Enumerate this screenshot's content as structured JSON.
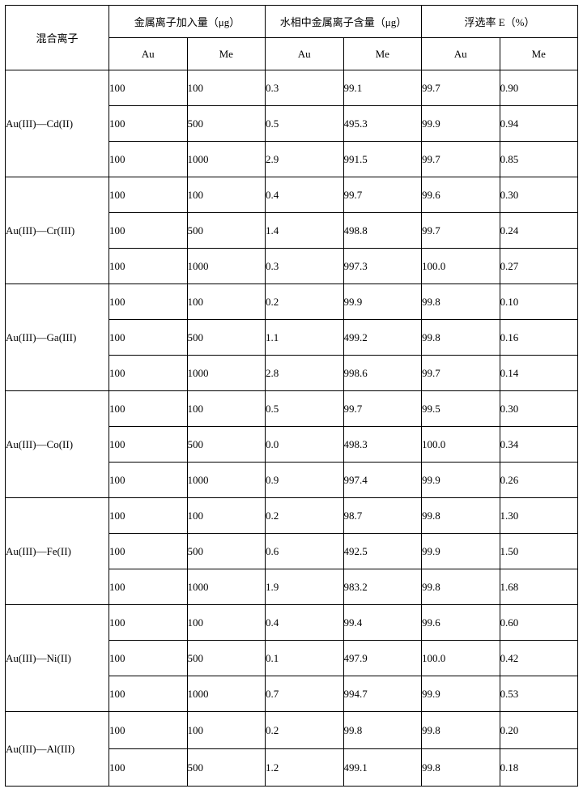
{
  "table": {
    "header": {
      "row_label": "混合离子",
      "groups": [
        "金属离子加入量（μg）",
        "水相中金属离子含量（μg）",
        "浮选率 E（%）"
      ],
      "subcols": [
        "Au",
        "Me"
      ]
    },
    "sections": [
      {
        "label": "Au(III)—Cd(II)",
        "rows": [
          [
            "100",
            "100",
            "0.3",
            "99.1",
            "99.7",
            "0.90"
          ],
          [
            "100",
            "500",
            "0.5",
            "495.3",
            "99.9",
            "0.94"
          ],
          [
            "100",
            "1000",
            "2.9",
            "991.5",
            "99.7",
            "0.85"
          ]
        ]
      },
      {
        "label": "Au(III)—Cr(III)",
        "rows": [
          [
            "100",
            "100",
            "0.4",
            "99.7",
            "99.6",
            "0.30"
          ],
          [
            "100",
            "500",
            "1.4",
            "498.8",
            "99.7",
            "0.24"
          ],
          [
            "100",
            "1000",
            "0.3",
            "997.3",
            "100.0",
            "0.27"
          ]
        ]
      },
      {
        "label": "Au(III)—Ga(III)",
        "rows": [
          [
            "100",
            "100",
            "0.2",
            "99.9",
            "99.8",
            "0.10"
          ],
          [
            "100",
            "500",
            "1.1",
            "499.2",
            "99.8",
            "0.16"
          ],
          [
            "100",
            "1000",
            "2.8",
            "998.6",
            "99.7",
            "0.14"
          ]
        ]
      },
      {
        "label": "Au(III)—Co(II)",
        "rows": [
          [
            "100",
            "100",
            "0.5",
            "99.7",
            "99.5",
            "0.30"
          ],
          [
            "100",
            "500",
            "0.0",
            "498.3",
            "100.0",
            "0.34"
          ],
          [
            "100",
            "1000",
            "0.9",
            "997.4",
            "99.9",
            "0.26"
          ]
        ]
      },
      {
        "label": "Au(III)—Fe(II)",
        "rows": [
          [
            "100",
            "100",
            "0.2",
            "98.7",
            "99.8",
            "1.30"
          ],
          [
            "100",
            "500",
            "0.6",
            "492.5",
            "99.9",
            "1.50"
          ],
          [
            "100",
            "1000",
            "1.9",
            "983.2",
            "99.8",
            "1.68"
          ]
        ]
      },
      {
        "label": "Au(III)—Ni(II)",
        "rows": [
          [
            "100",
            "100",
            "0.4",
            "99.4",
            "99.6",
            "0.60"
          ],
          [
            "100",
            "500",
            "0.1",
            "497.9",
            "100.0",
            "0.42"
          ],
          [
            "100",
            "1000",
            "0.7",
            "994.7",
            "99.9",
            "0.53"
          ]
        ]
      },
      {
        "label": "Au(III)—Al(III)",
        "rows": [
          [
            "100",
            "100",
            "0.2",
            "99.8",
            "99.8",
            "0.20"
          ],
          [
            "100",
            "500",
            "1.2",
            "499.1",
            "99.8",
            "0.18"
          ]
        ]
      }
    ]
  },
  "style": {
    "font_family": "SimSun",
    "border_color": "#000000",
    "background_color": "#ffffff"
  }
}
